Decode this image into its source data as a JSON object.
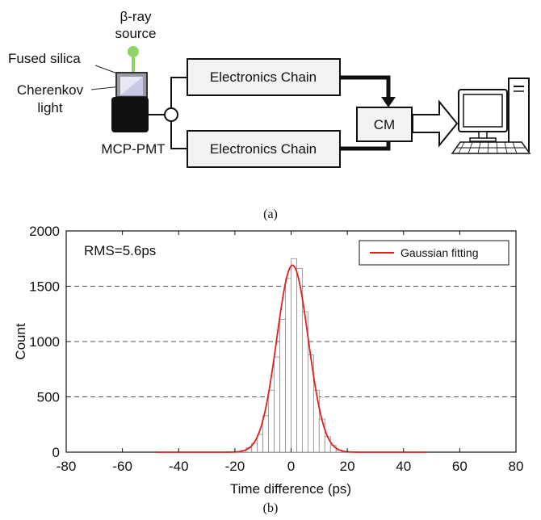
{
  "diagram": {
    "beta_source_line1": "β-ray",
    "beta_source_line2": "source",
    "fused_silica": "Fused silica",
    "cherenkov_line1": "Cherenkov",
    "cherenkov_line2": "light",
    "mcp_pmt": "MCP-PMT",
    "chain_top": "Electronics Chain",
    "chain_bottom": "Electronics Chain",
    "cm": "CM",
    "icons": [
      "beta-source-icon",
      "fused-silica-icon",
      "mcp-pmt-icon",
      "splitter-icon",
      "arrow-icon",
      "computer-icon"
    ],
    "caption": "(a)"
  },
  "chart_data": {
    "type": "bar",
    "title": "",
    "xlabel": "Time difference (ps)",
    "ylabel": "Count",
    "xlim": [
      -80,
      80
    ],
    "ylim": [
      0,
      2000
    ],
    "xticks": [
      -80,
      -60,
      -40,
      -20,
      0,
      20,
      40,
      60,
      80
    ],
    "yticks": [
      0,
      500,
      1000,
      1500,
      2000
    ],
    "grid": "horizontal dashed",
    "legend": {
      "position": "top-right",
      "entries": [
        "Gaussian fitting"
      ]
    },
    "annotation": "RMS=5.6ps",
    "bin_width": 2,
    "series": [
      {
        "kind": "histogram",
        "bins_left_edge": [
          -20,
          -18,
          -16,
          -14,
          -12,
          -10,
          -8,
          -6,
          -4,
          -2,
          0,
          2,
          4,
          6,
          8,
          10,
          12,
          14,
          16,
          18
        ],
        "counts": [
          5,
          15,
          40,
          80,
          160,
          330,
          560,
          860,
          1200,
          1570,
          1750,
          1660,
          1270,
          880,
          560,
          300,
          140,
          60,
          20,
          8
        ]
      },
      {
        "name": "Gaussian fitting",
        "kind": "gaussian-fit",
        "amplitude": 1690,
        "mean": 0.5,
        "sigma": 5.6,
        "range": [
          -48,
          48
        ],
        "color": "#e0201c"
      }
    ],
    "caption": "(b)"
  }
}
